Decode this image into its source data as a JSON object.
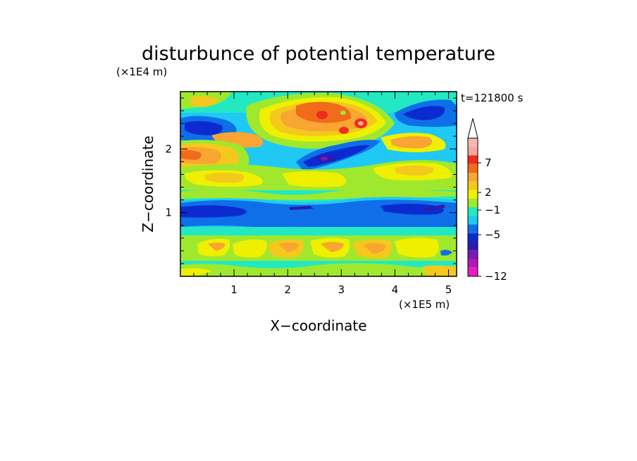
{
  "chart_data": {
    "type": "heatmap",
    "title": "disturbunce of potential temperature",
    "time_label": "t=121800 s",
    "xlabel": "X−coordinate",
    "ylabel": "Z−coordinate",
    "x_unit": "(×1E5 m)",
    "y_unit": "(×1E4 m)",
    "xlim": [
      0,
      5.15
    ],
    "ylim": [
      0,
      2.9
    ],
    "x_ticks": [
      "1",
      "2",
      "3",
      "4",
      "5"
    ],
    "y_ticks": [
      "1",
      "2"
    ],
    "colorbar": {
      "labels": [
        "7",
        "2",
        "−1",
        "−5",
        "−12"
      ],
      "colors": [
        "#ffffff",
        "#f7b6b4",
        "#f7a79e",
        "#ee2d1c",
        "#f06b1a",
        "#f8a531",
        "#f4c81d",
        "#eef000",
        "#a0e82e",
        "#22e9c2",
        "#1fc9f4",
        "#0e6fe8",
        "#0b2bd0",
        "#2a1cae",
        "#7a19b6",
        "#b617b4",
        "#e91dc4"
      ]
    },
    "field_description": [
      {
        "z_band": "0.0-0.1",
        "range_label": "2 to -1",
        "feature": "yellow/green near ground"
      },
      {
        "z_band": "0.4-0.7",
        "range_label": "2",
        "feature": "yellow-orange tilted cells"
      },
      {
        "z_band": "0.8-1.2",
        "range_label": "-5",
        "feature": "strong blue band"
      },
      {
        "z_band": "1.5-2.0",
        "range_label": "2",
        "feature": "yellow/orange waves"
      },
      {
        "z_band": "1.9-2.4",
        "range_label": "-5 to -12",
        "feature": "tilted blue/purple feature"
      },
      {
        "z_band": "2.2-2.8",
        "range_label": "7",
        "feature": "red/orange cells"
      }
    ]
  }
}
